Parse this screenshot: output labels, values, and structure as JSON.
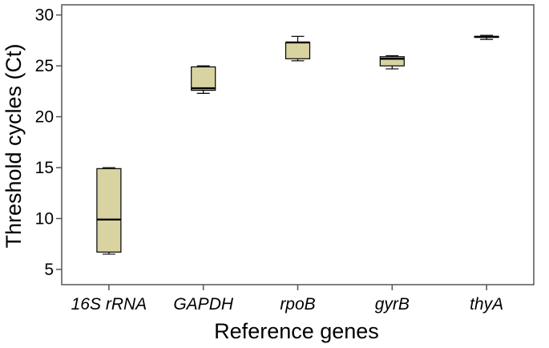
{
  "chart_data": {
    "type": "boxplot",
    "xlabel": "Reference genes",
    "ylabel": "Threshold cycles (Ct)",
    "ylim": [
      3.5,
      31
    ],
    "yticks": [
      5,
      10,
      15,
      20,
      25,
      30
    ],
    "grid": false,
    "box_color": "#d8d3a0",
    "categories": [
      "16S rRNA",
      "GAPDH",
      "rpoB",
      "gyrB",
      "thyA"
    ],
    "boxes": [
      {
        "label": "16S rRNA",
        "min": 6.5,
        "q1": 6.7,
        "median": 9.9,
        "q3": 14.9,
        "max": 15.0
      },
      {
        "label": "GAPDH",
        "min": 22.3,
        "q1": 22.6,
        "median": 22.8,
        "q3": 24.9,
        "max": 25.0
      },
      {
        "label": "rpoB",
        "min": 25.5,
        "q1": 25.7,
        "median": 27.3,
        "q3": 27.3,
        "max": 27.9
      },
      {
        "label": "gyrB",
        "min": 24.7,
        "q1": 25.0,
        "median": 25.7,
        "q3": 25.9,
        "max": 26.0
      },
      {
        "label": "thyA",
        "min": 27.6,
        "q1": 27.8,
        "median": 27.85,
        "q3": 27.9,
        "max": 28.0
      }
    ]
  }
}
